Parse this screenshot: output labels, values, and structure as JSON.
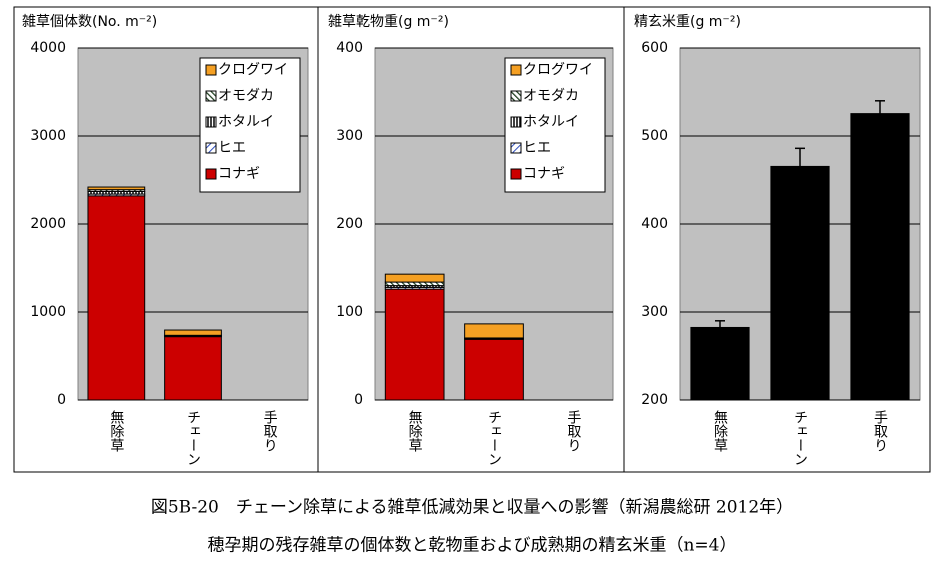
{
  "chart_data": [
    {
      "type": "bar",
      "stacked": true,
      "title": "雑草個体数(No. m⁻²)",
      "categories": [
        "無除草",
        "チェーン",
        "手取り"
      ],
      "series": [
        {
          "name": "コナギ",
          "color": "#cc0000",
          "pattern": "solid",
          "values": [
            2320,
            720,
            0
          ]
        },
        {
          "name": "ヒエ",
          "color": "#3050c0",
          "pattern": "diagonal",
          "values": [
            20,
            5,
            0
          ]
        },
        {
          "name": "ホタルイ",
          "color": "#000000",
          "pattern": "vertical",
          "values": [
            30,
            5,
            0
          ]
        },
        {
          "name": "オモダカ",
          "color": "#204020",
          "pattern": "diagonal-dense",
          "values": [
            20,
            5,
            0
          ]
        },
        {
          "name": "クログワイ",
          "color": "#f5a023",
          "pattern": "solid",
          "values": [
            30,
            60,
            0
          ]
        }
      ],
      "ylim": [
        0,
        4000
      ],
      "yticks": [
        0,
        1000,
        2000,
        3000,
        4000
      ],
      "grid": true,
      "legend": "upper right"
    },
    {
      "type": "bar",
      "stacked": true,
      "title": "雑草乾物重(g m⁻²)",
      "categories": [
        "無除草",
        "チェーン",
        "手取り"
      ],
      "series": [
        {
          "name": "コナギ",
          "color": "#cc0000",
          "pattern": "solid",
          "values": [
            126,
            69,
            0
          ]
        },
        {
          "name": "ヒエ",
          "color": "#3050c0",
          "pattern": "diagonal",
          "values": [
            2,
            0.5,
            0
          ]
        },
        {
          "name": "ホタルイ",
          "color": "#000000",
          "pattern": "vertical",
          "values": [
            2,
            0.5,
            0
          ]
        },
        {
          "name": "オモダカ",
          "color": "#204020",
          "pattern": "diagonal-dense",
          "values": [
            4,
            0.5,
            0
          ]
        },
        {
          "name": "クログワイ",
          "color": "#f5a023",
          "pattern": "solid",
          "values": [
            9,
            16,
            0
          ]
        }
      ],
      "ylim": [
        0,
        400
      ],
      "yticks": [
        0,
        100,
        200,
        300,
        400
      ],
      "grid": true,
      "legend": "upper right"
    },
    {
      "type": "bar",
      "title": "精玄米重(g m⁻²)",
      "categories": [
        "無除草",
        "チェーン",
        "手取り"
      ],
      "values": [
        283,
        466,
        526
      ],
      "errors": [
        7,
        20,
        14
      ],
      "color": "#000000",
      "ylim": [
        200,
        600
      ],
      "yticks": [
        200,
        300,
        400,
        500,
        600
      ],
      "grid": true
    }
  ],
  "caption": [
    "図5B-20　チェーン除草による雑草低減効果と収量への影響（新潟農総研 2012年）",
    "穂孕期の残存雑草の個体数と乾物重および成熟期の精玄米重（n=4）"
  ]
}
